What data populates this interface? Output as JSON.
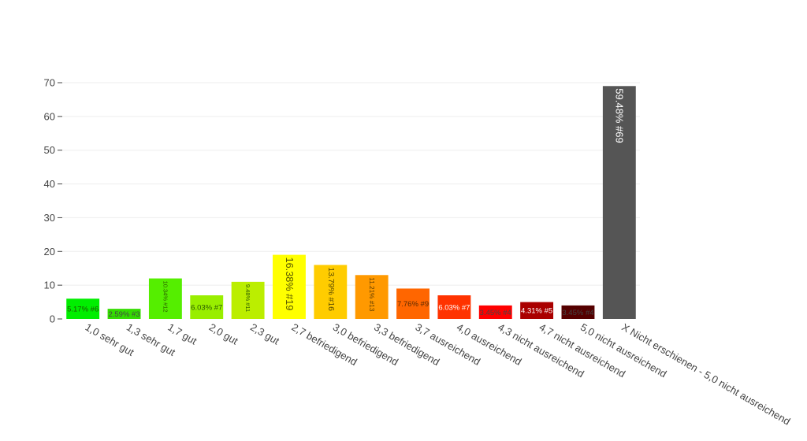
{
  "chart_data": {
    "type": "bar",
    "title": "",
    "xlabel": "",
    "ylabel": "",
    "ylim": [
      0,
      70
    ],
    "yticks": [
      0,
      10,
      20,
      30,
      40,
      50,
      60,
      70
    ],
    "grid": true,
    "legend": "none",
    "categories": [
      "1,0 sehr gut",
      "1,3 sehr gut",
      "1,7 gut",
      "2,0 gut",
      "2,3 gut",
      "2,7 befriedigend",
      "3,0 befriedigend",
      "3,3 befriedigend",
      "3,7 ausreichend",
      "4,0 ausreichend",
      "4,3 nicht ausreichend",
      "4,7 nicht ausreichend",
      "5,0 nicht ausreichend",
      "X Nicht erschienen - 5,0 nicht ausreichend"
    ],
    "values": [
      6,
      3,
      12,
      7,
      11,
      19,
      16,
      13,
      9,
      7,
      4,
      5,
      4,
      69
    ],
    "labels": [
      "5.17% #6",
      "2.59% #3",
      "10.34% #12",
      "6.03% #7",
      "9.48% #11",
      "16.38% #19",
      "13.79% #16",
      "11.21% #13",
      "7.76% #9",
      "6.03% #7",
      "3.45% #4",
      "4.31% #5",
      "3.45% #4",
      "59.48% #69"
    ],
    "colors": [
      "#00ee00",
      "#33dd00",
      "#55ee00",
      "#99ee00",
      "#bbee00",
      "#ffff00",
      "#ffcc00",
      "#ff9900",
      "#ff6600",
      "#ff3300",
      "#ff0000",
      "#aa0000",
      "#550000",
      "#555555"
    ],
    "label_colors": [
      "#1a5a00",
      "#444444",
      "#2a5a00",
      "#2a5a00",
      "#2a5a00",
      "#5a5a00",
      "#5a4a00",
      "#5a3a00",
      "#5a2a00",
      "#ffffff",
      "#444444",
      "#ffffff",
      "#444444",
      "#ffffff"
    ]
  }
}
